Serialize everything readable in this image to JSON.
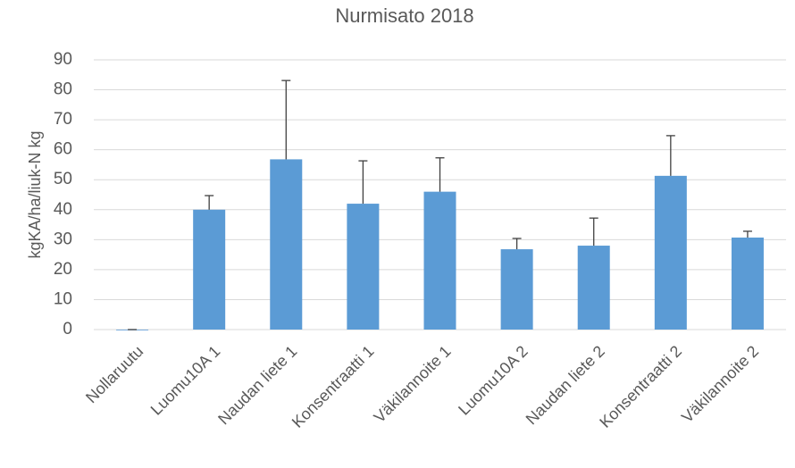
{
  "chart_data": {
    "type": "bar",
    "title": "Nurmisato 2018",
    "y_label": "kgKA/ha/liuk-N kg",
    "categories": [
      "Nollaruutu",
      "Luomu10A 1",
      "Naudan liete 1",
      "Konsentraatti 1",
      "Väkilannoite 1",
      "Luomu10A 2",
      "Naudan liete 2",
      "Konsentraatti 2",
      "Väkilannoite 2"
    ],
    "values": [
      0,
      40,
      56.8,
      42,
      46,
      26.8,
      28,
      51.3,
      30.7
    ],
    "errors": [
      0,
      4.7,
      26.3,
      14.3,
      11.3,
      3.6,
      9.2,
      13.4,
      2.1
    ],
    "color": "#5b9bd5",
    "error_color": "#404040",
    "ylim": [
      0,
      90
    ],
    "yticks": [
      0,
      10,
      20,
      30,
      40,
      50,
      60,
      70,
      80,
      90
    ],
    "grid": true
  }
}
